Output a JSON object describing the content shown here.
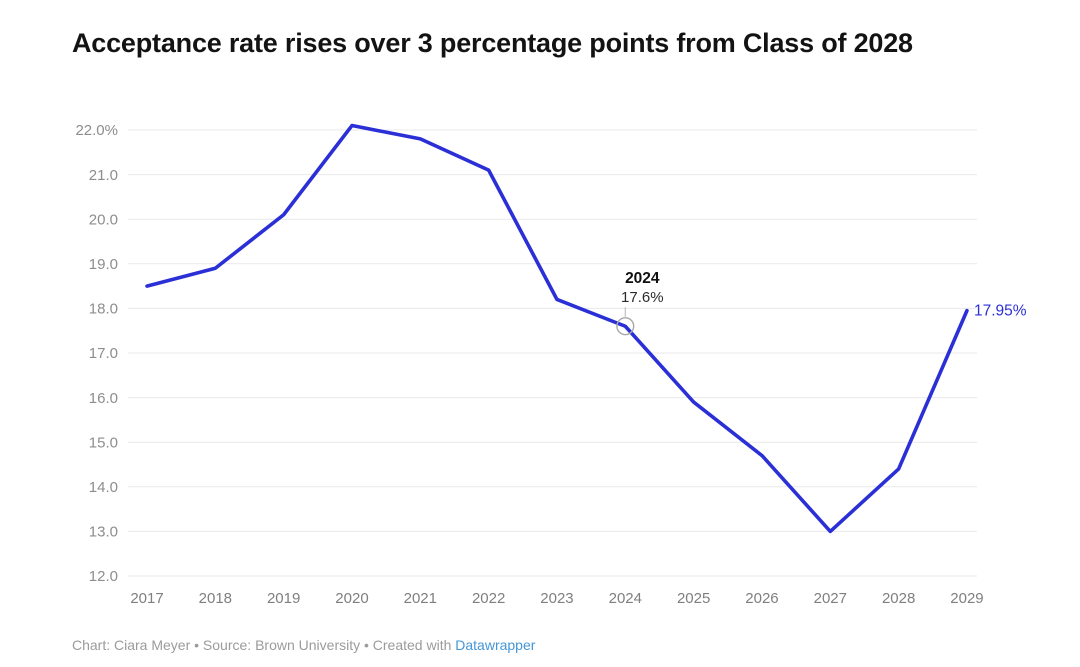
{
  "header": {
    "title": "Acceptance rate rises over 3 percentage points from Class of 2028"
  },
  "chart_data": {
    "type": "line",
    "title": "Acceptance rate rises over 3 percentage points from Class of 2028",
    "xlabel": "",
    "ylabel": "",
    "categories": [
      2017,
      2018,
      2019,
      2020,
      2021,
      2022,
      2023,
      2024,
      2025,
      2026,
      2027,
      2028,
      2029
    ],
    "values": [
      18.5,
      18.9,
      20.1,
      22.1,
      21.8,
      21.1,
      18.2,
      17.6,
      15.9,
      14.7,
      13.0,
      14.4,
      17.95
    ],
    "ylim": [
      12.0,
      22.3
    ],
    "y_ticks": [
      {
        "value": 22.0,
        "label": "22.0%"
      },
      {
        "value": 21.0,
        "label": "21.0"
      },
      {
        "value": 20.0,
        "label": "20.0"
      },
      {
        "value": 19.0,
        "label": "19.0"
      },
      {
        "value": 18.0,
        "label": "18.0"
      },
      {
        "value": 17.0,
        "label": "17.0"
      },
      {
        "value": 16.0,
        "label": "16.0"
      },
      {
        "value": 15.0,
        "label": "15.0"
      },
      {
        "value": 14.0,
        "label": "14.0"
      },
      {
        "value": 13.0,
        "label": "13.0"
      },
      {
        "value": 12.0,
        "label": "12.0"
      }
    ],
    "grid": "horizontal",
    "legend": "none",
    "line_color": "#2b2fd6",
    "grid_color": "#e9e9e9",
    "axis_color": "#8d8d8d",
    "annotation": {
      "year": 2024,
      "value": 17.6,
      "title": "2024",
      "value_label": "17.6%",
      "marker": "open-circle"
    },
    "end_label": {
      "year": 2029,
      "value": 17.95,
      "text": "17.95%"
    }
  },
  "footer": {
    "credit": "Chart: Ciara Meyer • Source: Brown University • Created with ",
    "link_label": "Datawrapper",
    "link_color": "#4596d7"
  }
}
